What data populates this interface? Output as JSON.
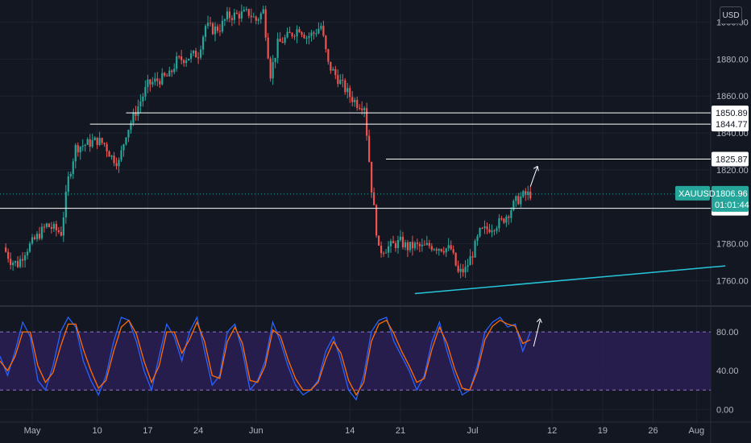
{
  "colors": {
    "background": "#131722",
    "grid": "#1f2330",
    "up": "#26a69a",
    "down": "#ef5350",
    "level_line": "#ffffff",
    "trendline": "#26c6da",
    "stoch_k": "#2962ff",
    "stoch_d": "#ff6d00",
    "stoch_band": "#2a1f55",
    "symbol_badge": "#26a69a"
  },
  "currency": "USD",
  "chart_data": [
    {
      "type": "candlestick",
      "symbol": "XAUUSD",
      "price_axis_ticks": [
        "1900.00",
        "1880.00",
        "1860.00",
        "1840.00",
        "1820.00",
        "1780.00",
        "1760.00"
      ],
      "time_axis_ticks": [
        "May",
        "10",
        "17",
        "24",
        "Jun",
        "14",
        "21",
        "Jul",
        "12",
        "19",
        "26",
        "Aug"
      ],
      "ylim": [
        1748,
        1912
      ],
      "last_price": "1806.96",
      "countdown": "01:01:44",
      "horizontal_levels": [
        "1850.89",
        "1844.77",
        "1825.87",
        "1799.17"
      ],
      "trendline": {
        "from": {
          "date": "2021-06-23",
          "price": 1753
        },
        "to": {
          "date": "2021-08-05",
          "price": 1768
        }
      },
      "projection_arrow": {
        "from": {
          "date": "2021-07-09",
          "price": 1811
        },
        "to": {
          "date": "2021-07-10",
          "price": 1822
        }
      },
      "anchor_points": [
        [
          "2021-04-27",
          1778
        ],
        [
          "2021-04-28",
          1771
        ],
        [
          "2021-04-29",
          1769
        ],
        [
          "2021-04-30",
          1776
        ],
        [
          "2021-05-03",
          1790
        ],
        [
          "2021-05-05",
          1786
        ],
        [
          "2021-05-06",
          1815
        ],
        [
          "2021-05-07",
          1832
        ],
        [
          "2021-05-10",
          1836
        ],
        [
          "2021-05-11",
          1834
        ],
        [
          "2021-05-12",
          1827
        ],
        [
          "2021-05-13",
          1824
        ],
        [
          "2021-05-14",
          1840
        ],
        [
          "2021-05-17",
          1866
        ],
        [
          "2021-05-18",
          1868
        ],
        [
          "2021-05-20",
          1871
        ],
        [
          "2021-05-21",
          1879
        ],
        [
          "2021-05-24",
          1883
        ],
        [
          "2021-05-25",
          1898
        ],
        [
          "2021-05-26",
          1896
        ],
        [
          "2021-05-27",
          1897
        ],
        [
          "2021-05-28",
          1903
        ],
        [
          "2021-05-31",
          1905
        ],
        [
          "2021-06-01",
          1901
        ],
        [
          "2021-06-02",
          1906
        ],
        [
          "2021-06-03",
          1872
        ],
        [
          "2021-06-04",
          1888
        ],
        [
          "2021-06-07",
          1897
        ],
        [
          "2021-06-08",
          1892
        ],
        [
          "2021-06-09",
          1894
        ],
        [
          "2021-06-10",
          1898
        ],
        [
          "2021-06-11",
          1877
        ],
        [
          "2021-06-14",
          1860
        ],
        [
          "2021-06-15",
          1856
        ],
        [
          "2021-06-16",
          1855
        ],
        [
          "2021-06-17",
          1810
        ],
        [
          "2021-06-18",
          1776
        ],
        [
          "2021-06-21",
          1781
        ],
        [
          "2021-06-22",
          1778
        ],
        [
          "2021-06-23",
          1779
        ],
        [
          "2021-06-24",
          1778
        ],
        [
          "2021-06-25",
          1779
        ],
        [
          "2021-06-28",
          1777
        ],
        [
          "2021-06-29",
          1764
        ],
        [
          "2021-06-30",
          1766
        ],
        [
          "2021-07-01",
          1775
        ],
        [
          "2021-07-02",
          1786
        ],
        [
          "2021-07-05",
          1792
        ],
        [
          "2021-07-06",
          1797
        ],
        [
          "2021-07-07",
          1803
        ],
        [
          "2021-07-08",
          1806
        ],
        [
          "2021-07-09",
          1807
        ]
      ]
    },
    {
      "type": "line",
      "indicator": "Stochastic RSI",
      "ylim": [
        -8,
        100
      ],
      "band": [
        20,
        80
      ],
      "ticks": [
        "80.00",
        "40.00",
        "0.00"
      ],
      "series": [
        {
          "id": "k",
          "values": [
            55,
            35,
            60,
            90,
            75,
            30,
            20,
            45,
            80,
            95,
            85,
            50,
            30,
            15,
            35,
            70,
            95,
            92,
            70,
            40,
            20,
            55,
            88,
            75,
            50,
            80,
            95,
            60,
            25,
            35,
            80,
            88,
            60,
            20,
            30,
            50,
            90,
            70,
            45,
            25,
            15,
            20,
            30,
            60,
            75,
            50,
            20,
            10,
            35,
            80,
            92,
            95,
            70,
            55,
            40,
            20,
            35,
            70,
            90,
            60,
            35,
            15,
            20,
            45,
            80,
            90,
            95,
            85,
            88,
            60,
            80
          ]
        },
        {
          "id": "d",
          "values": [
            50,
            40,
            55,
            80,
            80,
            45,
            28,
            38,
            65,
            88,
            88,
            62,
            40,
            22,
            30,
            60,
            85,
            92,
            78,
            50,
            28,
            45,
            80,
            80,
            58,
            72,
            90,
            70,
            35,
            32,
            70,
            85,
            68,
            30,
            28,
            45,
            82,
            76,
            52,
            32,
            20,
            20,
            28,
            52,
            70,
            58,
            30,
            15,
            28,
            70,
            88,
            92,
            78,
            60,
            45,
            28,
            32,
            62,
            85,
            68,
            42,
            22,
            20,
            40,
            72,
            86,
            92,
            88,
            86,
            68,
            72
          ]
        }
      ]
    }
  ]
}
